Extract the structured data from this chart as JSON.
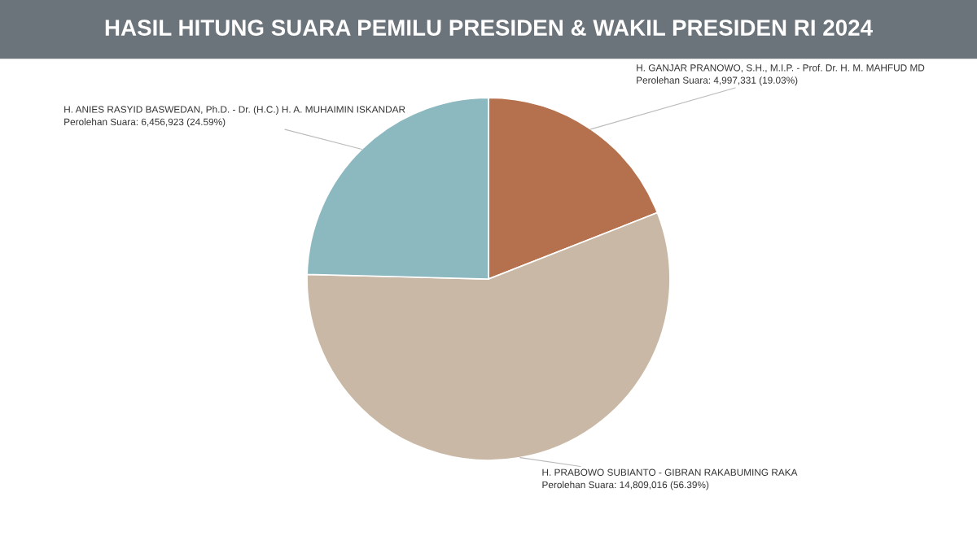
{
  "chart_data": {
    "type": "pie",
    "title": "HASIL HITUNG SUARA PEMILU PRESIDEN & WAKIL PRESIDEN RI 2024",
    "categories": [
      "H. GANJAR PRANOWO, S.H., M.I.P. - Prof. Dr. H. M. MAHFUD MD",
      "H. PRABOWO SUBIANTO - GIBRAN RAKABUMING RAKA",
      "H. ANIES RASYID BASWEDAN, Ph.D. - Dr. (H.C.) H. A. MUHAIMIN ISKANDAR"
    ],
    "values": [
      4997331,
      14809016,
      6456923
    ],
    "colors": [
      "#b5714e",
      "#c9b8a5",
      "#8cb8bf"
    ],
    "value_labels": [
      "Perolehan Suara: 4,997,331 (19.03%)",
      "Perolehan Suara: 14,809,016 (56.39%)",
      "Perolehan Suara: 6,456,923 (24.59%)"
    ]
  }
}
